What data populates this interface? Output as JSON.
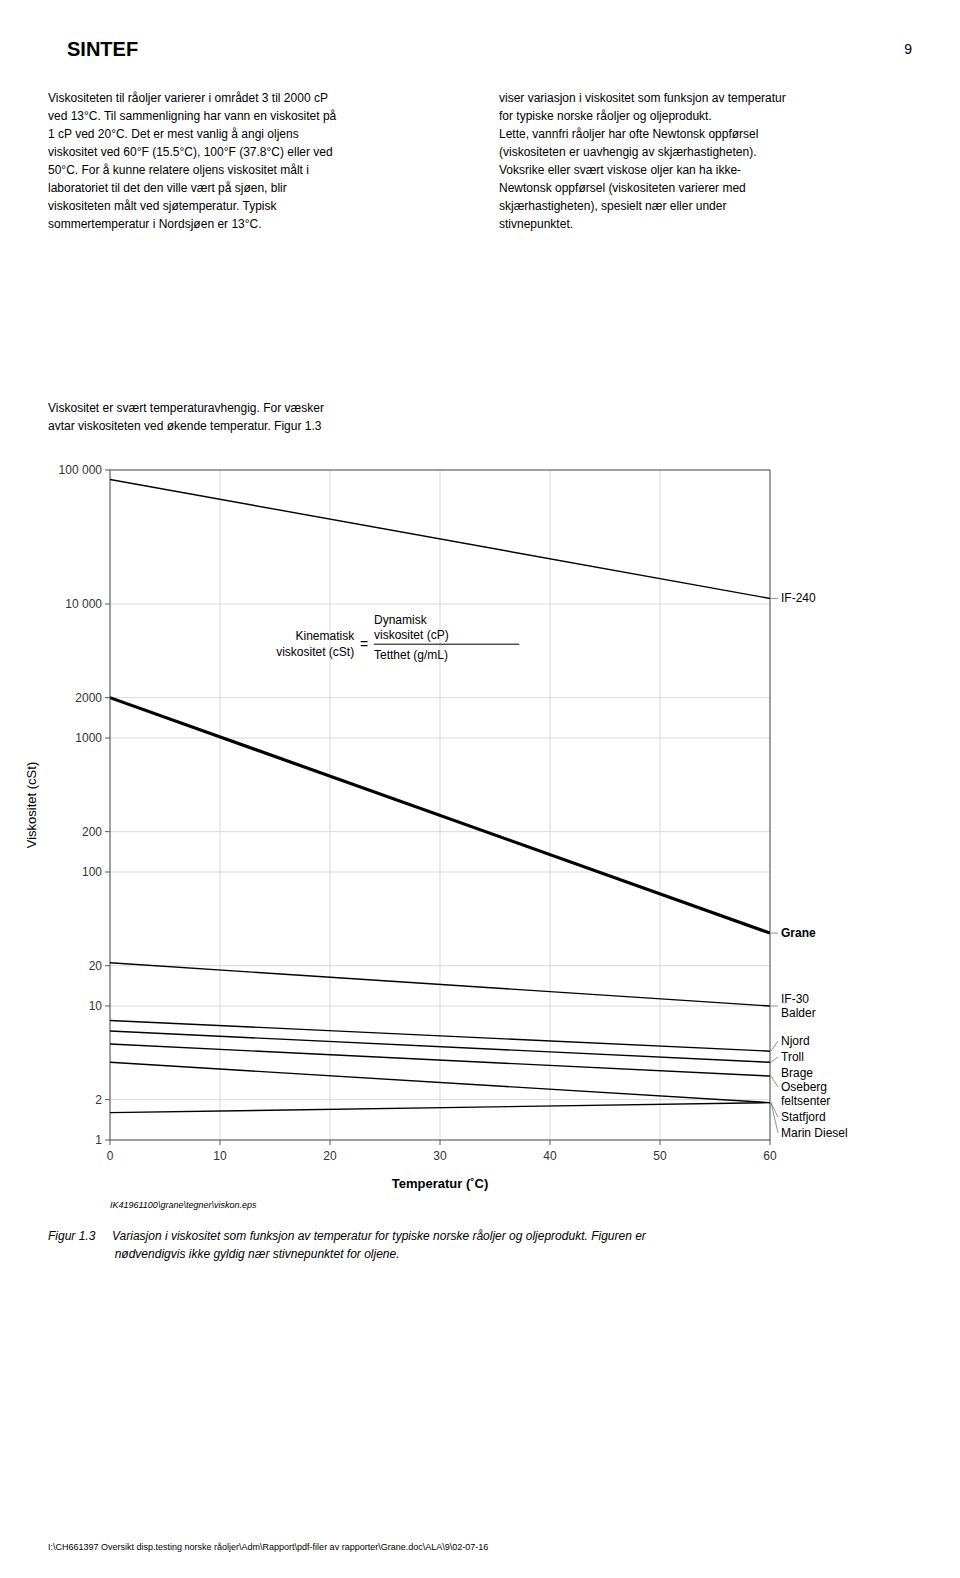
{
  "page": {
    "logo": "SINTEF",
    "page_number": "9",
    "text_left": "Viskositeten til råoljer varierer i området 3 til 2000 cP\nved 13°C. Til sammenligning har vann en viskositet på\n1 cP ved 20°C. Det er mest vanlig å angi oljens\nviskositet ved 60°F (15.5°C), 100°F (37.8°C) eller ved\n50°C. For å kunne relatere oljens viskositet målt i\nlaboratoriet til det den ville vært på sjøen, blir\nviskositeten målt ved sjøtemperatur. Typisk\nsommertemperatur i Nordsjøen er 13°C.",
    "text_right": "viser variasjon i viskositet som funksjon av temperatur\nfor typiske norske råoljer og oljeprodukt.\n\nLette, vannfri råoljer har ofte Newtonsk oppførsel\n(viskositeten er uavhengig av skjærhastigheten).\nVoksrike eller svært viskose oljer kan ha ikke-\nNewtonsk oppførsel (viskositeten varierer med\nskjærhastigheten), spesielt nær eller under\nstivnepunktet.",
    "text_intro": [
      "Viskositet er svært temperaturavhengig. For væsker",
      "avtar viskositeten ved økende temperatur. Figur 1.3"
    ],
    "file_label": "IK41961100\\grane\\tegner\\viskon.eps",
    "caption": "Figur 1.3     Variasjon i viskositet som funksjon av temperatur for typiske norske råoljer og oljeprodukt. Figuren er\n                    nødvendigvis ikke gyldig nær stivnepunktet for oljene.",
    "footer": "I:\\CH661397 Oversikt disp.testing norske råoljer\\Adm\\Rapport\\pdf-filer av rapporter\\Grane.doc\\ALA\\9\\02-07-16"
  },
  "chart_data": {
    "type": "line",
    "x_label": "Temperatur (˚C)",
    "y_label": "Viskositet (cSt)",
    "log": "y",
    "grid": true,
    "xlim": [
      0,
      60
    ],
    "ylim": [
      1,
      100000
    ],
    "xticks": [
      0,
      10,
      20,
      30,
      40,
      50,
      60
    ],
    "yticks": [
      1,
      2,
      10,
      20,
      100,
      200,
      1000,
      2000,
      {
        "value": 10000,
        "label": "10 000"
      },
      {
        "value": 100000,
        "label": "100 000"
      }
    ],
    "x": [
      0,
      60
    ],
    "series": [
      {
        "name": "IF-240",
        "color": "#000000",
        "values": [
          85000,
          11000
        ]
      },
      {
        "name": "Grane",
        "color": "#000000",
        "line_style": "bold",
        "values": [
          2000,
          35
        ]
      },
      {
        "name": "IF-30\nBalder",
        "color": "#000000",
        "values": [
          21,
          10
        ]
      },
      {
        "name": "Njord",
        "color": "#000000",
        "values": [
          7.8,
          4.6
        ]
      },
      {
        "name": "Troll",
        "color": "#000000",
        "values": [
          6.5,
          3.8
        ]
      },
      {
        "name": "Brage\nOseberg\nfeltsenter",
        "color": "#000000",
        "values": [
          5.2,
          3.0
        ]
      },
      {
        "name": "Statfjord",
        "color": "#000000",
        "values": [
          3.8,
          1.9
        ]
      },
      {
        "name": "Marin Diesel",
        "color": "#000000",
        "values": [
          1.6,
          1.9
        ]
      }
    ],
    "annotations": [
      "Kinematisk\nviskositet (cSt)",
      "=",
      "Dynamisk\nviskositet (cP)",
      "Tetthet (g/mL)"
    ]
  }
}
